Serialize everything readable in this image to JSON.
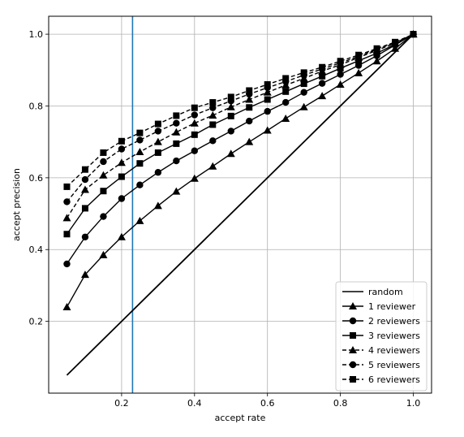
{
  "chart_data": {
    "type": "line",
    "title": "",
    "xlabel": "accept rate",
    "ylabel": "accept precision",
    "xlim": [
      0.0,
      1.05
    ],
    "ylim": [
      0.0,
      1.05
    ],
    "xticks": [
      0.2,
      0.4,
      0.6,
      0.8,
      1.0
    ],
    "xtick_labels": [
      "0.2",
      "0.4",
      "0.6",
      "0.8",
      "1.0"
    ],
    "yticks": [
      0.2,
      0.4,
      0.6,
      0.8,
      1.0
    ],
    "ytick_labels": [
      "0.2",
      "0.4",
      "0.6",
      "0.8",
      "1.0"
    ],
    "grid": true,
    "legend_position": "lower-right",
    "vline": {
      "x": 0.23,
      "color": "#1f77b4"
    },
    "series": [
      {
        "name": "random",
        "style": "solid",
        "marker": "none",
        "x": [
          0.05,
          1.0
        ],
        "y": [
          0.05,
          1.0
        ]
      },
      {
        "name": "1 reviewer",
        "style": "solid",
        "marker": "triangle",
        "x": [
          0.05,
          0.1,
          0.15,
          0.2,
          0.25,
          0.3,
          0.35,
          0.4,
          0.45,
          0.5,
          0.55,
          0.6,
          0.65,
          0.7,
          0.75,
          0.8,
          0.85,
          0.9,
          0.95,
          1.0
        ],
        "y": [
          0.24,
          0.33,
          0.385,
          0.435,
          0.48,
          0.522,
          0.562,
          0.598,
          0.632,
          0.667,
          0.7,
          0.732,
          0.765,
          0.797,
          0.828,
          0.86,
          0.892,
          0.925,
          0.96,
          1.0
        ]
      },
      {
        "name": "2 reviewers",
        "style": "solid",
        "marker": "circle",
        "x": [
          0.05,
          0.1,
          0.15,
          0.2,
          0.25,
          0.3,
          0.35,
          0.4,
          0.45,
          0.5,
          0.55,
          0.6,
          0.65,
          0.7,
          0.75,
          0.8,
          0.85,
          0.9,
          0.95,
          1.0
        ],
        "y": [
          0.36,
          0.435,
          0.492,
          0.542,
          0.58,
          0.615,
          0.647,
          0.675,
          0.703,
          0.73,
          0.758,
          0.785,
          0.81,
          0.838,
          0.863,
          0.888,
          0.913,
          0.94,
          0.97,
          1.0
        ]
      },
      {
        "name": "3 reviewers",
        "style": "solid",
        "marker": "square",
        "x": [
          0.05,
          0.1,
          0.15,
          0.2,
          0.25,
          0.3,
          0.35,
          0.4,
          0.45,
          0.5,
          0.55,
          0.6,
          0.65,
          0.7,
          0.75,
          0.8,
          0.85,
          0.9,
          0.95,
          1.0
        ],
        "y": [
          0.443,
          0.515,
          0.563,
          0.603,
          0.64,
          0.67,
          0.695,
          0.72,
          0.748,
          0.772,
          0.796,
          0.818,
          0.84,
          0.862,
          0.883,
          0.905,
          0.926,
          0.947,
          0.972,
          1.0
        ]
      },
      {
        "name": "4 reviewers",
        "style": "dashed",
        "marker": "triangle",
        "x": [
          0.05,
          0.1,
          0.15,
          0.2,
          0.25,
          0.3,
          0.35,
          0.4,
          0.45,
          0.5,
          0.55,
          0.6,
          0.65,
          0.7,
          0.75,
          0.8,
          0.85,
          0.9,
          0.95,
          1.0
        ],
        "y": [
          0.488,
          0.567,
          0.607,
          0.642,
          0.672,
          0.7,
          0.727,
          0.752,
          0.774,
          0.797,
          0.818,
          0.838,
          0.858,
          0.877,
          0.897,
          0.915,
          0.935,
          0.955,
          0.975,
          1.0
        ]
      },
      {
        "name": "5 reviewers",
        "style": "dashed",
        "marker": "circle",
        "x": [
          0.05,
          0.1,
          0.15,
          0.2,
          0.25,
          0.3,
          0.35,
          0.4,
          0.45,
          0.5,
          0.55,
          0.6,
          0.65,
          0.7,
          0.75,
          0.8,
          0.85,
          0.9,
          0.95,
          1.0
        ],
        "y": [
          0.533,
          0.595,
          0.645,
          0.68,
          0.705,
          0.73,
          0.752,
          0.775,
          0.795,
          0.814,
          0.833,
          0.851,
          0.868,
          0.886,
          0.903,
          0.92,
          0.938,
          0.958,
          0.976,
          1.0
        ]
      },
      {
        "name": "6 reviewers",
        "style": "dashed",
        "marker": "square",
        "x": [
          0.05,
          0.1,
          0.15,
          0.2,
          0.25,
          0.3,
          0.35,
          0.4,
          0.45,
          0.5,
          0.55,
          0.6,
          0.65,
          0.7,
          0.75,
          0.8,
          0.85,
          0.9,
          0.95,
          1.0
        ],
        "y": [
          0.575,
          0.623,
          0.67,
          0.702,
          0.725,
          0.75,
          0.773,
          0.795,
          0.81,
          0.825,
          0.843,
          0.86,
          0.877,
          0.893,
          0.908,
          0.925,
          0.942,
          0.96,
          0.978,
          1.0
        ]
      }
    ]
  }
}
